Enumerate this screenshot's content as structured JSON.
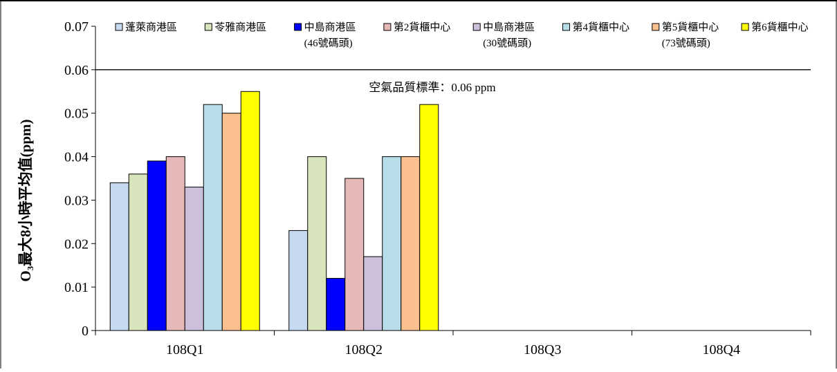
{
  "chart_data": {
    "type": "bar",
    "title": "",
    "xlabel": "",
    "ylabel": "O₃最大8小時平均值(ppm)",
    "ylim": [
      0,
      0.07
    ],
    "yticks": [
      "0",
      "0.01",
      "0.02",
      "0.03",
      "0.04",
      "0.05",
      "0.06",
      "0.07"
    ],
    "categories": [
      "108Q1",
      "108Q2",
      "108Q3",
      "108Q4"
    ],
    "series": [
      {
        "name": "蓬萊商港區",
        "color": "#c6d9f1",
        "values": [
          0.034,
          0.023,
          null,
          null
        ]
      },
      {
        "name": "苓雅商港區",
        "color": "#d8e4bc",
        "values": [
          0.036,
          0.04,
          null,
          null
        ]
      },
      {
        "name": "中島商港區(46號碼頭)",
        "color": "#0000ff",
        "values": [
          0.039,
          0.012,
          null,
          null
        ]
      },
      {
        "name": "第2貨櫃中心",
        "color": "#e6b9b8",
        "values": [
          0.04,
          0.035,
          null,
          null
        ]
      },
      {
        "name": "中島商港區(30號碼頭)",
        "color": "#ccc0da",
        "values": [
          0.033,
          0.017,
          null,
          null
        ]
      },
      {
        "name": "第4貨櫃中心",
        "color": "#b7dee8",
        "values": [
          0.052,
          0.04,
          null,
          null
        ]
      },
      {
        "name": "第5貨櫃中心(73號碼頭)",
        "color": "#fac090",
        "values": [
          0.05,
          0.04,
          null,
          null
        ]
      },
      {
        "name": "第6貨櫃中心",
        "color": "#ffff00",
        "values": [
          0.055,
          0.052,
          null,
          null
        ]
      }
    ],
    "legend": {
      "placement": "top",
      "entries": [
        {
          "line1": "蓬萊商港區",
          "line2": ""
        },
        {
          "line1": "苓雅商港區",
          "line2": ""
        },
        {
          "line1": "中島商港區",
          "line2": "(46號碼頭)"
        },
        {
          "line1": "第2貨櫃中心",
          "line2": ""
        },
        {
          "line1": "中島商港區",
          "line2": "(30號碼頭)"
        },
        {
          "line1": "第4貨櫃中心",
          "line2": ""
        },
        {
          "line1": "第5貨櫃中心",
          "line2": "(73號碼頭)"
        },
        {
          "line1": "第6貨櫃中心",
          "line2": ""
        }
      ]
    },
    "reference_line": {
      "value": 0.06,
      "label": "空氣品質標準：0.06 ppm"
    },
    "grid": false
  }
}
